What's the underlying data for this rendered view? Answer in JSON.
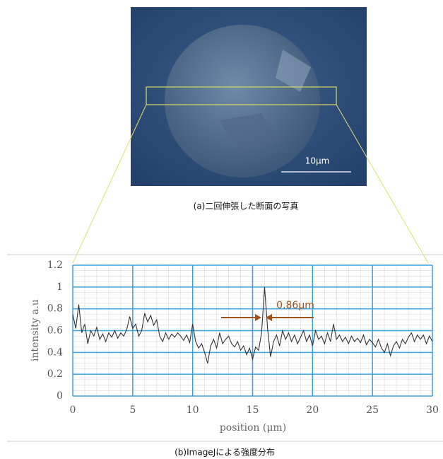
{
  "chart_data": {
    "type": "line",
    "photo_scale_label": "10μm",
    "photo_caption": "(a)二回伸張した断面の写真",
    "caption": "(b)ImageJによる強度分布",
    "x_label": "position (μm)",
    "y_label": "intensity a.u",
    "annotation": "0.86μm",
    "xlim": [
      0,
      30
    ],
    "ylim": [
      0,
      1.2
    ],
    "xticks": [
      0,
      5,
      10,
      15,
      20,
      25,
      30
    ],
    "yticks": [
      0,
      0.2,
      0.4,
      0.6,
      0.8,
      1,
      1.2
    ],
    "grid": true,
    "minor_grid": true,
    "x": [
      0,
      0.25,
      0.5,
      0.75,
      1,
      1.25,
      1.5,
      1.75,
      2,
      2.25,
      2.5,
      2.75,
      3,
      3.25,
      3.5,
      3.75,
      4,
      4.25,
      4.5,
      4.75,
      5,
      5.25,
      5.5,
      5.75,
      6,
      6.25,
      6.5,
      6.75,
      7,
      7.25,
      7.5,
      7.75,
      8,
      8.25,
      8.5,
      8.75,
      9,
      9.25,
      9.5,
      9.75,
      10,
      10.25,
      10.5,
      10.75,
      11,
      11.25,
      11.5,
      11.75,
      12,
      12.25,
      12.5,
      12.75,
      13,
      13.25,
      13.5,
      13.75,
      14,
      14.25,
      14.5,
      14.75,
      15,
      15.25,
      15.5,
      15.75,
      16,
      16.25,
      16.5,
      16.75,
      17,
      17.25,
      17.5,
      17.75,
      18,
      18.25,
      18.5,
      18.75,
      19,
      19.25,
      19.5,
      19.75,
      20,
      20.25,
      20.5,
      20.75,
      21,
      21.25,
      21.5,
      21.75,
      22,
      22.25,
      22.5,
      22.75,
      23,
      23.25,
      23.5,
      23.75,
      24,
      24.25,
      24.5,
      24.75,
      25,
      25.25,
      25.5,
      25.75,
      26,
      26.25,
      26.5,
      26.75,
      27,
      27.25,
      27.5,
      27.75,
      28,
      28.25,
      28.5,
      28.75,
      29,
      29.25,
      29.5,
      29.75,
      30
    ],
    "series": [
      {
        "color": "#333333",
        "values": [
          0.75,
          0.62,
          0.84,
          0.58,
          0.66,
          0.48,
          0.6,
          0.55,
          0.63,
          0.52,
          0.57,
          0.5,
          0.58,
          0.54,
          0.6,
          0.53,
          0.58,
          0.55,
          0.61,
          0.73,
          0.62,
          0.66,
          0.55,
          0.6,
          0.76,
          0.68,
          0.74,
          0.65,
          0.7,
          0.55,
          0.5,
          0.58,
          0.52,
          0.57,
          0.54,
          0.58,
          0.55,
          0.51,
          0.56,
          0.49,
          0.66,
          0.5,
          0.44,
          0.48,
          0.4,
          0.3,
          0.46,
          0.52,
          0.44,
          0.58,
          0.48,
          0.52,
          0.55,
          0.48,
          0.45,
          0.5,
          0.42,
          0.46,
          0.38,
          0.44,
          0.34,
          0.45,
          0.42,
          0.58,
          1.0,
          0.62,
          0.36,
          0.5,
          0.56,
          0.46,
          0.6,
          0.52,
          0.58,
          0.5,
          0.56,
          0.48,
          0.54,
          0.6,
          0.5,
          0.56,
          0.46,
          0.6,
          0.52,
          0.55,
          0.48,
          0.58,
          0.5,
          0.66,
          0.52,
          0.56,
          0.5,
          0.54,
          0.48,
          0.55,
          0.5,
          0.53,
          0.49,
          0.56,
          0.47,
          0.52,
          0.49,
          0.45,
          0.52,
          0.44,
          0.4,
          0.48,
          0.37,
          0.46,
          0.5,
          0.44,
          0.52,
          0.48,
          0.54,
          0.58,
          0.5,
          0.56,
          0.52,
          0.56,
          0.48,
          0.55,
          0.5
        ]
      }
    ]
  }
}
